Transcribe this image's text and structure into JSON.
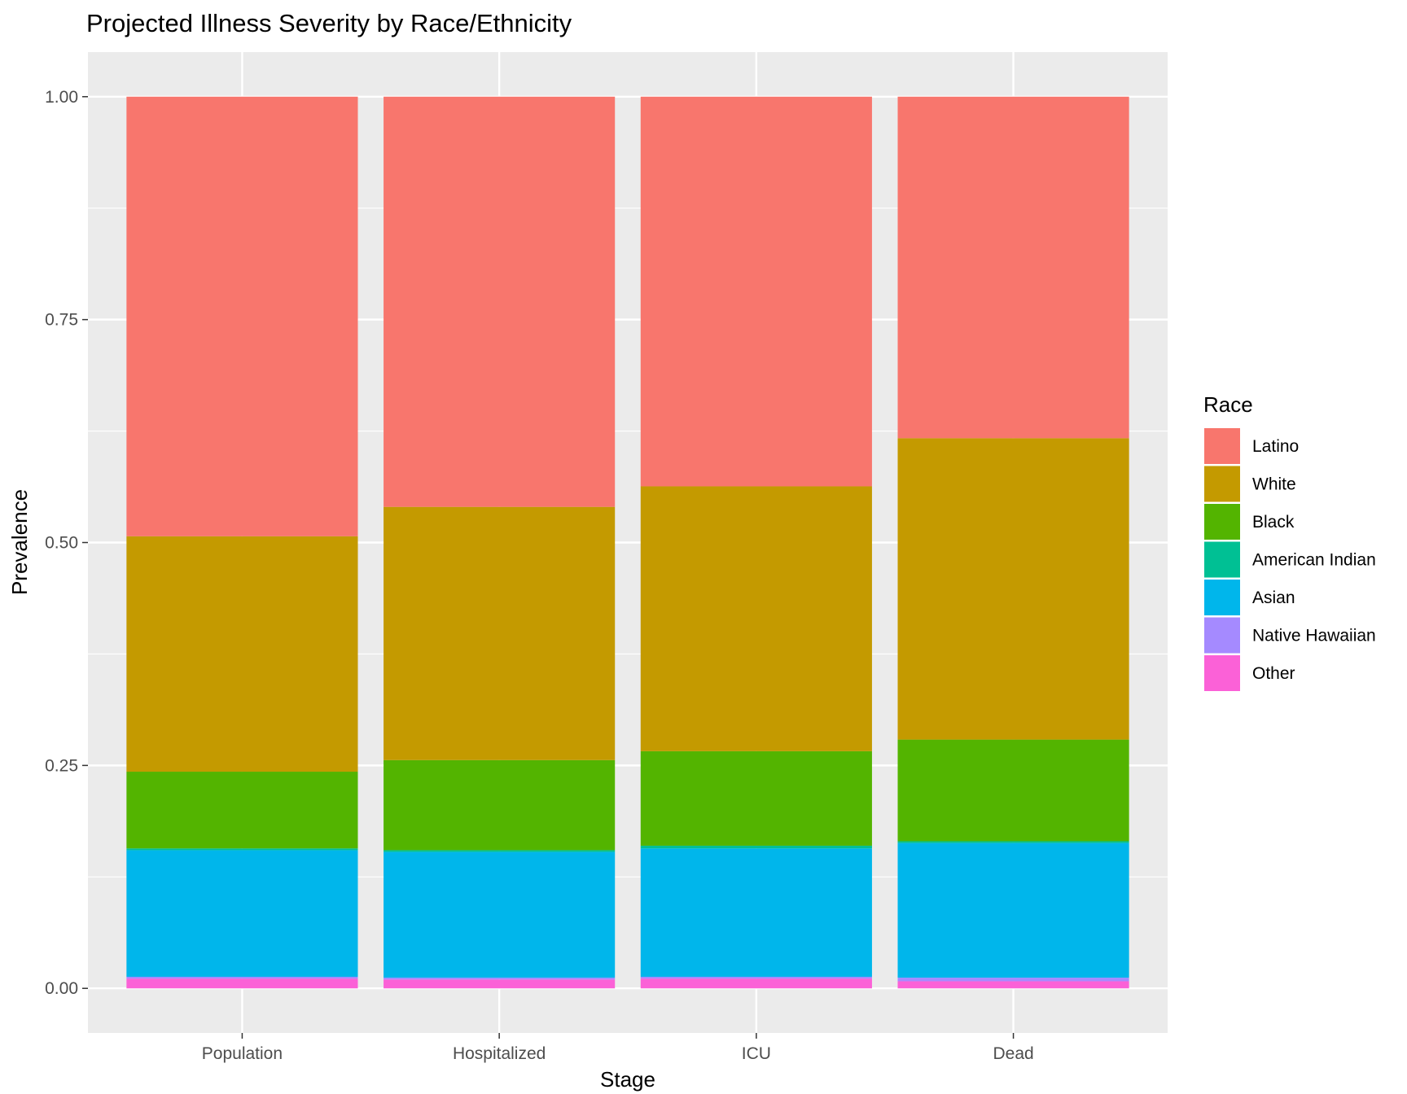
{
  "chart_data": {
    "type": "bar",
    "stacked": true,
    "title": "Projected Illness Severity by Race/Ethnicity",
    "xlabel": "Stage",
    "ylabel": "Prevalence",
    "ylim": [
      -0.05,
      1.05
    ],
    "yticks": [
      0.0,
      0.25,
      0.5,
      0.75,
      1.0
    ],
    "ytick_labels": [
      "0.00",
      "0.25",
      "0.50",
      "0.75",
      "1.00"
    ],
    "grid": true,
    "legend_position": "right",
    "legend_title": "Race",
    "categories": [
      "Population",
      "Hospitalized",
      "ICU",
      "Dead"
    ],
    "series": [
      {
        "name": "Latino",
        "color": "#F8766D",
        "values": [
          0.493,
          0.46,
          0.437,
          0.383
        ]
      },
      {
        "name": "White",
        "color": "#C49A00",
        "values": [
          0.264,
          0.284,
          0.297,
          0.338
        ]
      },
      {
        "name": "Black",
        "color": "#53B400",
        "values": [
          0.086,
          0.101,
          0.106,
          0.114
        ]
      },
      {
        "name": "American Indian",
        "color": "#00C094",
        "values": [
          0.002,
          0.002,
          0.003,
          0.002
        ]
      },
      {
        "name": "Asian",
        "color": "#00B6EB",
        "values": [
          0.142,
          0.141,
          0.144,
          0.151
        ]
      },
      {
        "name": "Native Hawaiian",
        "color": "#A58AFF",
        "values": [
          0.002,
          0.002,
          0.002,
          0.004
        ]
      },
      {
        "name": "Other",
        "color": "#FB61D7",
        "values": [
          0.011,
          0.01,
          0.011,
          0.008
        ]
      }
    ],
    "panel_background": "#EBEBEB",
    "grid_color": "#FFFFFF"
  }
}
